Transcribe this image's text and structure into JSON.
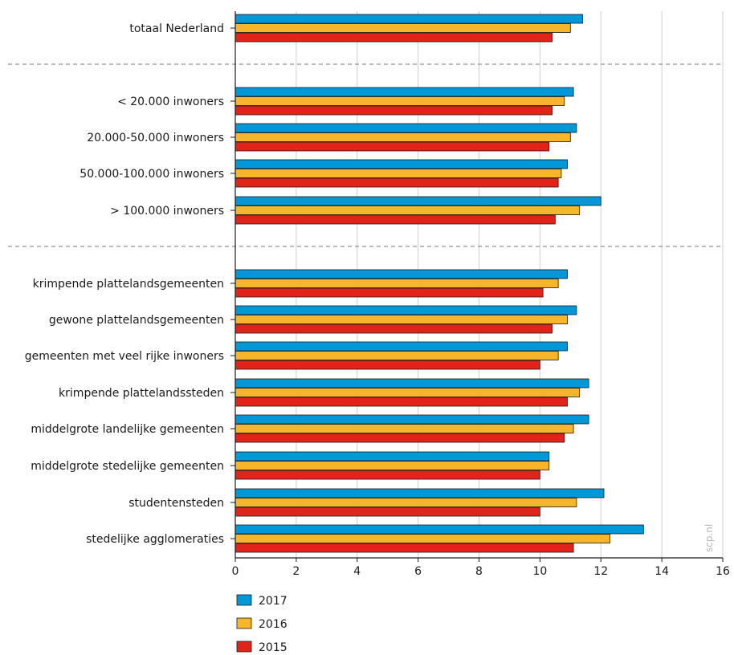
{
  "chart_data": {
    "type": "bar",
    "orientation": "horizontal",
    "categories": [
      "totaal Nederland",
      "< 20.000 inwoners",
      "20.000-50.000 inwoners",
      "50.000-100.000 inwoners",
      "> 100.000 inwoners",
      "krimpende plattelandsgemeenten",
      "gewone plattelandsgemeenten",
      "gemeenten met veel rijke inwoners",
      "krimpende plattelandssteden",
      "middelgrote landelijke gemeenten",
      "middelgrote stedelijke gemeenten",
      "studentensteden",
      "stedelijke agglomeraties"
    ],
    "groups": [
      [
        0
      ],
      [
        1,
        2,
        3,
        4
      ],
      [
        5,
        6,
        7,
        8,
        9,
        10,
        11,
        12
      ]
    ],
    "series": [
      {
        "name": "2017",
        "color": "#0098d9",
        "values": [
          11.4,
          11.1,
          11.2,
          10.9,
          12.0,
          10.9,
          11.2,
          10.9,
          11.6,
          11.6,
          10.3,
          12.1,
          13.4
        ]
      },
      {
        "name": "2016",
        "color": "#f7b52b",
        "values": [
          11.0,
          10.8,
          11.0,
          10.7,
          11.3,
          10.6,
          10.9,
          10.6,
          11.3,
          11.1,
          10.3,
          11.2,
          12.3
        ]
      },
      {
        "name": "2015",
        "color": "#e1231a",
        "values": [
          10.4,
          10.4,
          10.3,
          10.6,
          10.5,
          10.1,
          10.4,
          10.0,
          10.9,
          10.8,
          10.0,
          10.0,
          11.1
        ]
      }
    ],
    "xlim": [
      0,
      16
    ],
    "xticks": [
      0,
      2,
      4,
      6,
      8,
      10,
      12,
      14,
      16
    ],
    "grid": true,
    "legend_position": "bottom-left",
    "watermark": "scp.nl"
  }
}
